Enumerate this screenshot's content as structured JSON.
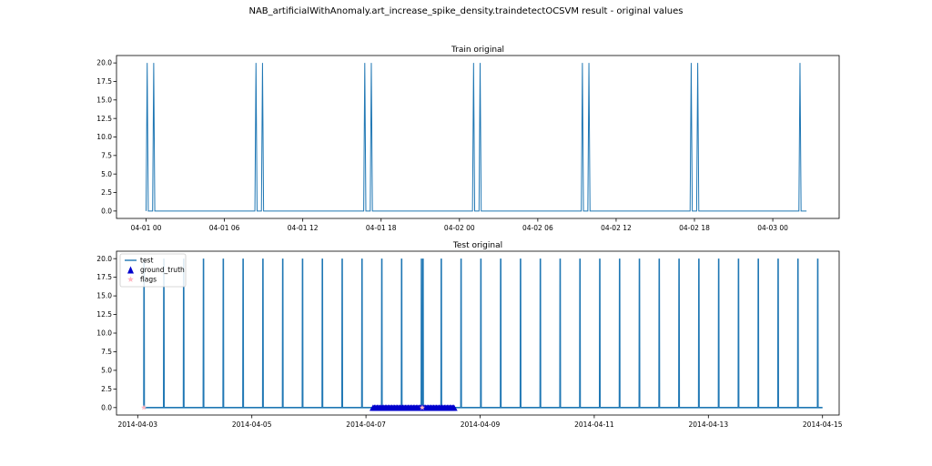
{
  "figure": {
    "title": "NAB_artificialWithAnomaly.art_increase_spike_density.traindetectOCSVM result - original values"
  },
  "colors": {
    "series": "#1f77b4",
    "ground_truth": "#0000cd",
    "flags": "#ffb6c1",
    "axis": "#000000"
  },
  "chart_data": [
    {
      "type": "line",
      "title": "Train original",
      "xlabel": "",
      "ylabel": "",
      "x_axis": "datetime",
      "xlim": [
        "2014-03-31 21:44",
        "2014-04-03 05:05"
      ],
      "ylim": [
        -1.0,
        21.0
      ],
      "x_ticks": [
        "04-01 00",
        "04-01 06",
        "04-01 12",
        "04-01 18",
        "04-02 00",
        "04-02 06",
        "04-02 12",
        "04-02 18",
        "04-03 00"
      ],
      "y_ticks": [
        "0.0",
        "2.5",
        "5.0",
        "7.5",
        "10.0",
        "12.5",
        "15.0",
        "17.5",
        "20.0"
      ],
      "series": [
        {
          "baseline": 0,
          "data_range": [
            "2014-04-01 00:00",
            "2014-04-03 02:35"
          ],
          "spikes": [
            {
              "x": "2014-04-01 00:05",
              "y": 20
            },
            {
              "x": "2014-04-01 00:35",
              "y": 20
            },
            {
              "x": "2014-04-01 08:25",
              "y": 20
            },
            {
              "x": "2014-04-01 08:55",
              "y": 20
            },
            {
              "x": "2014-04-01 16:45",
              "y": 20
            },
            {
              "x": "2014-04-01 17:15",
              "y": 20
            },
            {
              "x": "2014-04-02 01:05",
              "y": 20
            },
            {
              "x": "2014-04-02 01:35",
              "y": 20
            },
            {
              "x": "2014-04-02 09:25",
              "y": 20
            },
            {
              "x": "2014-04-02 09:55",
              "y": 20
            },
            {
              "x": "2014-04-02 17:45",
              "y": 20
            },
            {
              "x": "2014-04-02 18:15",
              "y": 20
            },
            {
              "x": "2014-04-03 02:05",
              "y": 20
            }
          ]
        }
      ]
    },
    {
      "type": "line",
      "title": "Test original",
      "xlabel": "",
      "ylabel": "",
      "x_axis": "datetime",
      "xlim": [
        "2014-04-02 15:05",
        "2014-04-15 07:00"
      ],
      "ylim": [
        -1.0,
        21.0
      ],
      "x_ticks": [
        "2014-04-03",
        "2014-04-05",
        "2014-04-07",
        "2014-04-09",
        "2014-04-11",
        "2014-04-13",
        "2014-04-15"
      ],
      "y_ticks": [
        "0.0",
        "2.5",
        "5.0",
        "7.5",
        "10.0",
        "12.5",
        "15.0",
        "17.5",
        "20.0"
      ],
      "legend": {
        "position": "upper left",
        "entries": [
          "test",
          "ground_truth",
          "flags"
        ]
      },
      "series": [
        {
          "name": "test",
          "baseline": 0,
          "data_range": [
            "2014-04-03 02:35",
            "2014-04-15 00:00"
          ],
          "spikes": [
            {
              "x": "2014-04-03 02:40",
              "y": 20
            },
            {
              "x": "2014-04-03 11:00",
              "y": 20
            },
            {
              "x": "2014-04-03 19:20",
              "y": 20
            },
            {
              "x": "2014-04-04 03:40",
              "y": 20
            },
            {
              "x": "2014-04-04 12:00",
              "y": 20
            },
            {
              "x": "2014-04-04 20:20",
              "y": 20
            },
            {
              "x": "2014-04-05 04:40",
              "y": 20
            },
            {
              "x": "2014-04-05 13:00",
              "y": 20
            },
            {
              "x": "2014-04-05 21:20",
              "y": 20
            },
            {
              "x": "2014-04-06 05:40",
              "y": 20
            },
            {
              "x": "2014-04-06 14:00",
              "y": 20
            },
            {
              "x": "2014-04-06 22:20",
              "y": 20
            },
            {
              "x": "2014-04-07 06:40",
              "y": 20
            },
            {
              "x": "2014-04-07 15:00",
              "y": 20
            },
            {
              "x": "2014-04-07 23:20",
              "y": 20
            },
            {
              "x": "2014-04-08 00:00",
              "y": 20
            },
            {
              "x": "2014-04-08 07:40",
              "y": 20
            },
            {
              "x": "2014-04-08 16:00",
              "y": 20
            },
            {
              "x": "2014-04-09 00:20",
              "y": 20
            },
            {
              "x": "2014-04-09 08:40",
              "y": 20
            },
            {
              "x": "2014-04-09 17:00",
              "y": 20
            },
            {
              "x": "2014-04-10 01:20",
              "y": 20
            },
            {
              "x": "2014-04-10 09:40",
              "y": 20
            },
            {
              "x": "2014-04-10 18:00",
              "y": 20
            },
            {
              "x": "2014-04-11 02:20",
              "y": 20
            },
            {
              "x": "2014-04-11 10:40",
              "y": 20
            },
            {
              "x": "2014-04-11 19:00",
              "y": 20
            },
            {
              "x": "2014-04-12 03:20",
              "y": 20
            },
            {
              "x": "2014-04-12 11:40",
              "y": 20
            },
            {
              "x": "2014-04-12 20:00",
              "y": 20
            },
            {
              "x": "2014-04-13 04:20",
              "y": 20
            },
            {
              "x": "2014-04-13 12:40",
              "y": 20
            },
            {
              "x": "2014-04-13 21:00",
              "y": 20
            },
            {
              "x": "2014-04-14 05:20",
              "y": 20
            },
            {
              "x": "2014-04-14 13:40",
              "y": 20
            },
            {
              "x": "2014-04-14 22:00",
              "y": 20
            }
          ]
        },
        {
          "name": "ground_truth",
          "marker": "triangle-up",
          "y": 0,
          "range": [
            "2014-04-07 03:00",
            "2014-04-08 13:00"
          ]
        },
        {
          "name": "flags",
          "marker": "star",
          "points": [
            {
              "x": "2014-04-03 02:35",
              "y": 0
            },
            {
              "x": "2014-04-07 23:40",
              "y": 0
            }
          ]
        }
      ]
    }
  ]
}
